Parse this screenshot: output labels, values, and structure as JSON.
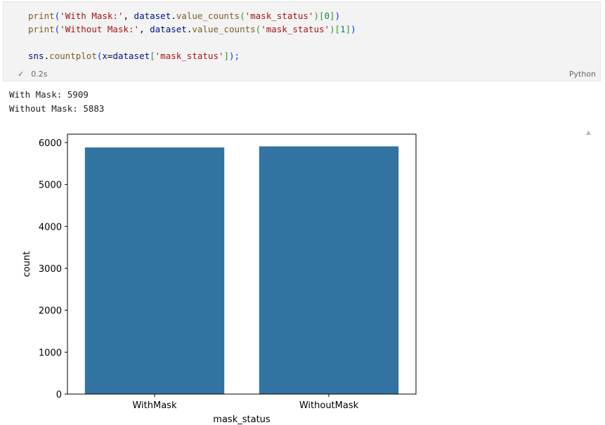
{
  "cell": {
    "code_lines": [
      [
        {
          "t": "print",
          "c": "fn"
        },
        {
          "t": "(",
          "c": "br1"
        },
        {
          "t": "'With Mask:'",
          "c": "str"
        },
        {
          "t": ", ",
          "c": ""
        },
        {
          "t": "dataset",
          "c": "var"
        },
        {
          "t": ".",
          "c": ""
        },
        {
          "t": "value_counts",
          "c": "fn"
        },
        {
          "t": "(",
          "c": "br2"
        },
        {
          "t": "'mask_status'",
          "c": "str"
        },
        {
          "t": ")[",
          "c": "br2"
        },
        {
          "t": "0",
          "c": "num"
        },
        {
          "t": "]",
          "c": "br2"
        },
        {
          "t": ")",
          "c": "br1"
        }
      ],
      [
        {
          "t": "print",
          "c": "fn"
        },
        {
          "t": "(",
          "c": "br1"
        },
        {
          "t": "'Without Mask:'",
          "c": "str"
        },
        {
          "t": ", ",
          "c": ""
        },
        {
          "t": "dataset",
          "c": "var"
        },
        {
          "t": ".",
          "c": ""
        },
        {
          "t": "value_counts",
          "c": "fn"
        },
        {
          "t": "(",
          "c": "br2"
        },
        {
          "t": "'mask_status'",
          "c": "str"
        },
        {
          "t": ")[",
          "c": "br2"
        },
        {
          "t": "1",
          "c": "num"
        },
        {
          "t": "]",
          "c": "br2"
        },
        {
          "t": ")",
          "c": "br1"
        }
      ],
      [],
      [
        {
          "t": "sns",
          "c": "var"
        },
        {
          "t": ".",
          "c": ""
        },
        {
          "t": "countplot",
          "c": "fn"
        },
        {
          "t": "(",
          "c": "br1"
        },
        {
          "t": "x",
          "c": "var"
        },
        {
          "t": "=",
          "c": ""
        },
        {
          "t": "dataset",
          "c": "var"
        },
        {
          "t": "[",
          "c": "br2"
        },
        {
          "t": "'mask_status'",
          "c": "str"
        },
        {
          "t": "]",
          "c": "br2"
        },
        {
          "t": ");",
          "c": "br1"
        }
      ]
    ],
    "check_icon": "checkmark-icon",
    "exec_time": "0.2s",
    "language": "Python"
  },
  "output": {
    "lines": [
      "With Mask: 5909",
      "Without Mask: 5883"
    ]
  },
  "chart_data": {
    "type": "bar",
    "categories": [
      "WithMask",
      "WithoutMask"
    ],
    "values": [
      5883,
      5909
    ],
    "xlabel": "mask_status",
    "ylabel": "count",
    "ylim": [
      0,
      6200
    ],
    "yticks": [
      0,
      1000,
      2000,
      3000,
      4000,
      5000,
      6000
    ],
    "bar_color": "#3274a1",
    "grid": false
  }
}
